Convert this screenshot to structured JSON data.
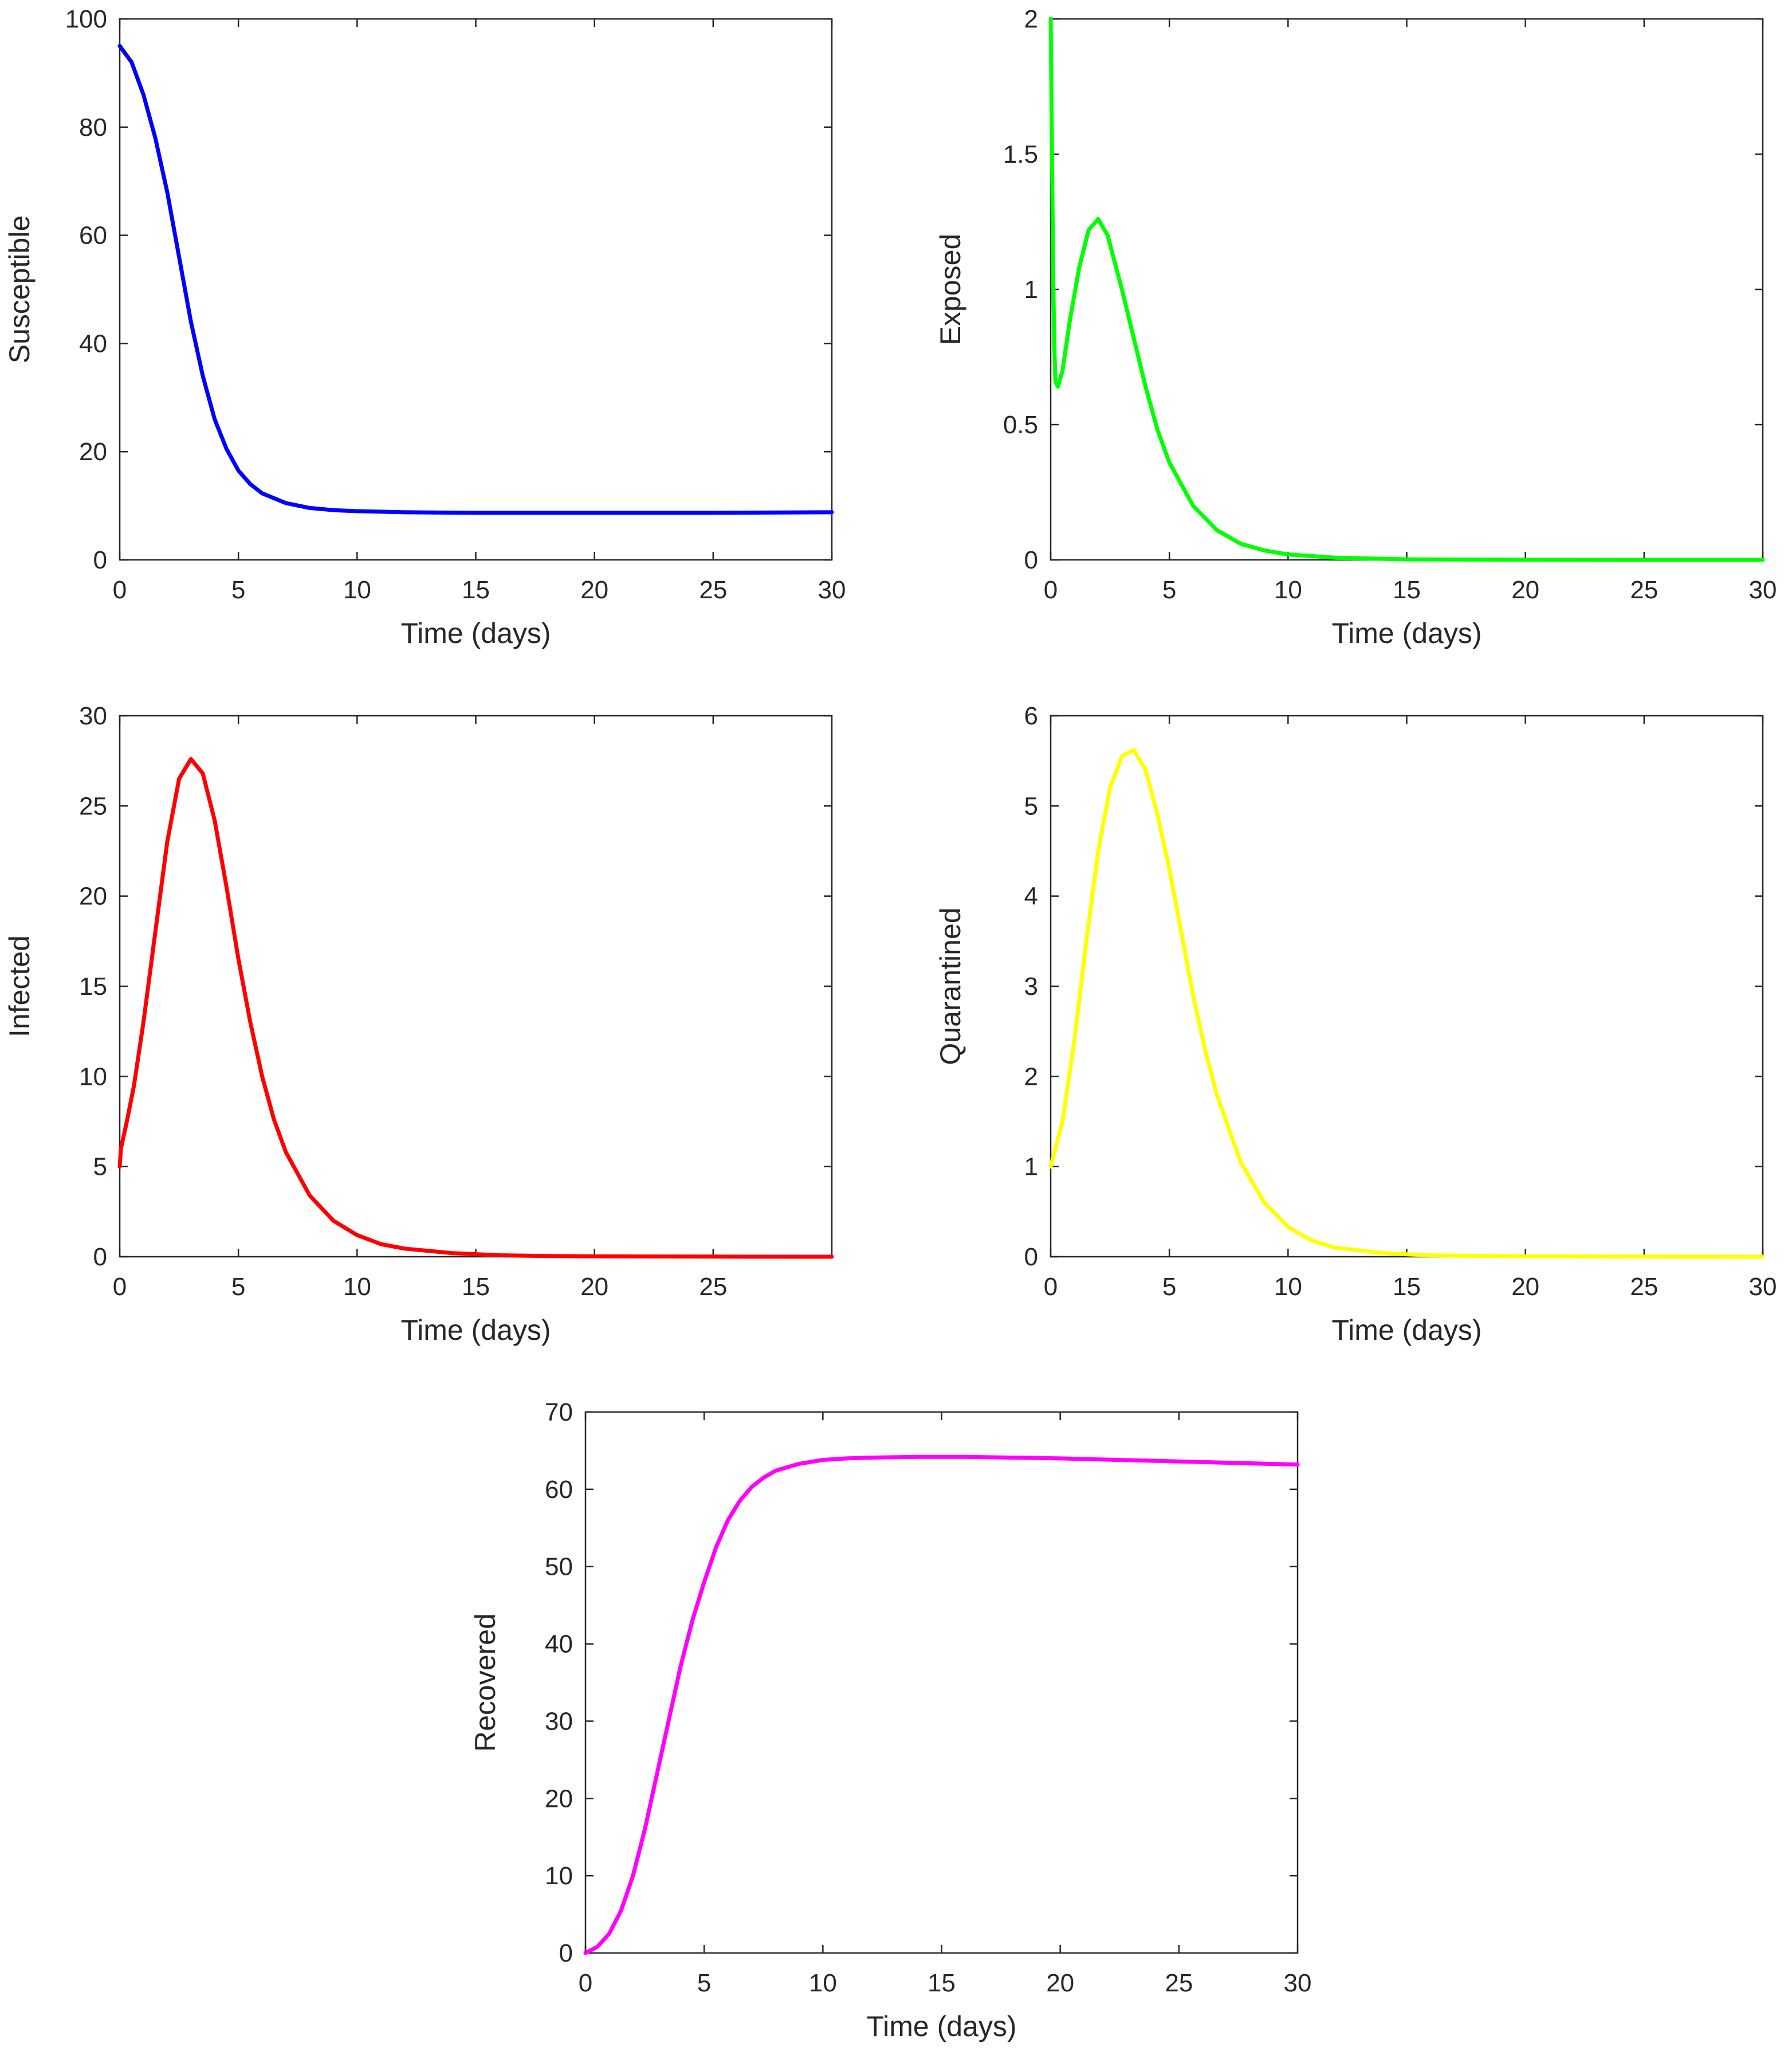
{
  "chart_data": [
    {
      "type": "line",
      "title": "",
      "xlabel": "Time (days)",
      "ylabel": "Susceptible",
      "xlim": [
        0,
        30
      ],
      "ylim": [
        0,
        100
      ],
      "xticks": [
        0,
        5,
        10,
        15,
        20,
        25,
        30
      ],
      "yticks": [
        0,
        20,
        40,
        60,
        80,
        100
      ],
      "color": "#0000ff",
      "series": [
        {
          "name": "Susceptible",
          "x": [
            0,
            0.5,
            1,
            1.5,
            2,
            2.5,
            3,
            3.5,
            4,
            4.5,
            5,
            5.5,
            6,
            7,
            8,
            9,
            10,
            12,
            15,
            18,
            20,
            25,
            30
          ],
          "y": [
            95,
            92,
            86,
            78,
            68,
            56,
            44,
            34,
            26,
            20.5,
            16.5,
            14,
            12.3,
            10.5,
            9.6,
            9.2,
            9,
            8.8,
            8.7,
            8.7,
            8.7,
            8.7,
            8.8
          ]
        }
      ]
    },
    {
      "type": "line",
      "title": "",
      "xlabel": "Time (days)",
      "ylabel": "Exposed",
      "xlim": [
        0,
        30
      ],
      "ylim": [
        0,
        2
      ],
      "xticks": [
        0,
        5,
        10,
        15,
        20,
        25,
        30
      ],
      "yticks": [
        0,
        0.5,
        1,
        1.5,
        2
      ],
      "color": "#00ff00",
      "series": [
        {
          "name": "Exposed",
          "x": [
            0,
            0.05,
            0.1,
            0.15,
            0.2,
            0.3,
            0.5,
            0.8,
            1.2,
            1.6,
            2,
            2.4,
            3,
            3.5,
            4,
            4.5,
            5,
            6,
            7,
            8,
            9,
            10,
            12,
            15,
            20,
            25,
            30
          ],
          "y": [
            2,
            1.55,
            1.1,
            0.8,
            0.66,
            0.64,
            0.7,
            0.88,
            1.08,
            1.22,
            1.26,
            1.2,
            1.0,
            0.82,
            0.64,
            0.48,
            0.36,
            0.2,
            0.11,
            0.06,
            0.035,
            0.02,
            0.008,
            0.002,
            0.0005,
            0.0001,
            0
          ]
        }
      ]
    },
    {
      "type": "line",
      "title": "",
      "xlabel": "Time (days)",
      "ylabel": "Infected",
      "xlim": [
        0,
        30
      ],
      "ylim": [
        0,
        30
      ],
      "xticks": [
        0,
        5,
        10,
        15,
        20,
        25
      ],
      "yticks": [
        0,
        5,
        10,
        15,
        20,
        25,
        30
      ],
      "color": "#ff0000",
      "series": [
        {
          "name": "Infected",
          "x": [
            0,
            0.05,
            0.3,
            0.6,
            1,
            1.5,
            2,
            2.5,
            3,
            3.5,
            4,
            4.5,
            5,
            5.5,
            6,
            6.5,
            7,
            8,
            9,
            10,
            11,
            12,
            14,
            16,
            18,
            20,
            25,
            30
          ],
          "y": [
            5,
            6,
            7.5,
            9.5,
            13,
            18,
            23,
            26.5,
            27.6,
            26.8,
            24.2,
            20.5,
            16.5,
            13,
            10,
            7.6,
            5.8,
            3.4,
            2.0,
            1.2,
            0.7,
            0.45,
            0.2,
            0.08,
            0.04,
            0.02,
            0.005,
            0
          ]
        }
      ]
    },
    {
      "type": "line",
      "title": "",
      "xlabel": "Time (days)",
      "ylabel": "Quarantined",
      "xlim": [
        0,
        30
      ],
      "ylim": [
        0,
        6
      ],
      "xticks": [
        0,
        5,
        10,
        15,
        20,
        25,
        30
      ],
      "yticks": [
        0,
        1,
        2,
        3,
        4,
        5,
        6
      ],
      "color": "#ffff00",
      "series": [
        {
          "name": "Quarantined",
          "x": [
            0,
            0.5,
            1,
            1.5,
            2,
            2.5,
            3,
            3.5,
            4,
            4.5,
            5,
            5.5,
            6,
            6.5,
            7,
            8,
            9,
            10,
            11,
            12,
            14,
            16,
            20,
            25,
            30
          ],
          "y": [
            1,
            1.5,
            2.4,
            3.5,
            4.5,
            5.2,
            5.55,
            5.62,
            5.4,
            4.9,
            4.3,
            3.6,
            2.9,
            2.3,
            1.8,
            1.05,
            0.6,
            0.33,
            0.18,
            0.1,
            0.04,
            0.015,
            0.004,
            0.001,
            0
          ]
        }
      ]
    },
    {
      "type": "line",
      "title": "",
      "xlabel": "Time (days)",
      "ylabel": "Recovered",
      "xlim": [
        0,
        30
      ],
      "ylim": [
        0,
        70
      ],
      "xticks": [
        0,
        5,
        10,
        15,
        20,
        25,
        30
      ],
      "yticks": [
        0,
        10,
        20,
        30,
        40,
        50,
        60,
        70
      ],
      "color": "#ff00ff",
      "series": [
        {
          "name": "Recovered",
          "x": [
            0,
            0.5,
            1,
            1.5,
            2,
            2.5,
            3,
            3.5,
            4,
            4.5,
            5,
            5.5,
            6,
            6.5,
            7,
            7.5,
            8,
            9,
            10,
            11,
            12,
            14,
            16,
            18,
            20,
            25,
            30
          ],
          "y": [
            0,
            0.8,
            2.5,
            5.5,
            10,
            16,
            23,
            30,
            37,
            43,
            48,
            52.5,
            56,
            58.5,
            60.3,
            61.5,
            62.4,
            63.3,
            63.8,
            64.0,
            64.1,
            64.2,
            64.2,
            64.1,
            64.0,
            63.6,
            63.2
          ]
        }
      ]
    }
  ]
}
